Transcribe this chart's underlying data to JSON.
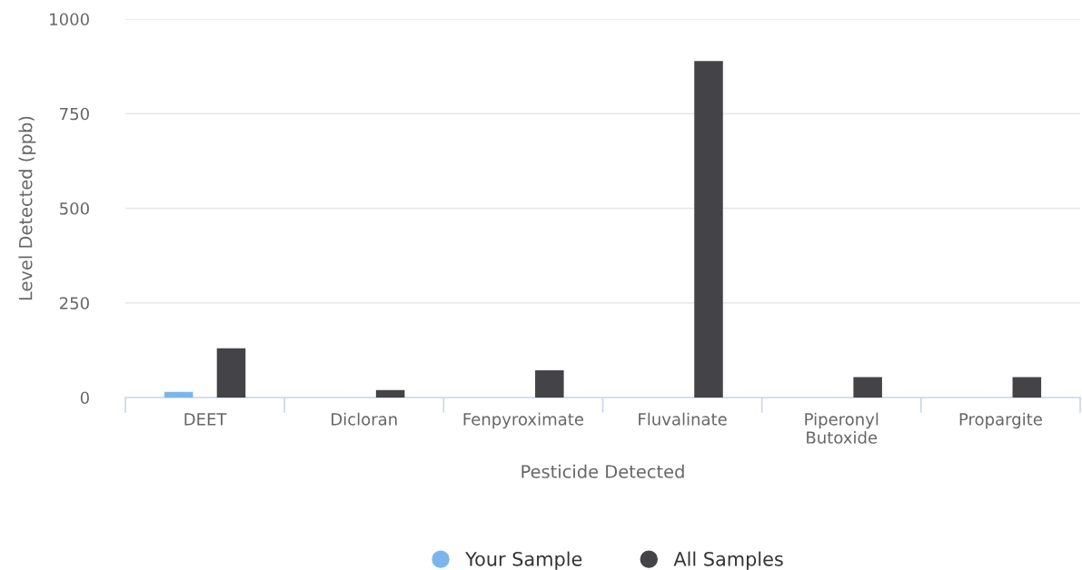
{
  "chart_data": {
    "type": "bar",
    "xlabel": "Pesticide Detected",
    "ylabel": "Level Detected (ppb)",
    "categories": [
      "DEET",
      "Dicloran",
      "Fenpyroximate",
      "Fluvalinate",
      "Piperonyl\nButoxide",
      "Propargite"
    ],
    "series": [
      {
        "name": "Your Sample",
        "color": "#7cb5ec",
        "values": [
          15,
          null,
          null,
          null,
          null,
          null
        ]
      },
      {
        "name": "All Samples",
        "color": "#434348",
        "values": [
          130,
          20,
          72,
          889,
          54,
          54
        ]
      }
    ],
    "ylim": [
      0,
      1000
    ],
    "yticks": [
      0,
      250,
      500,
      750,
      1000
    ],
    "grid": "y",
    "legend": "bottom"
  }
}
